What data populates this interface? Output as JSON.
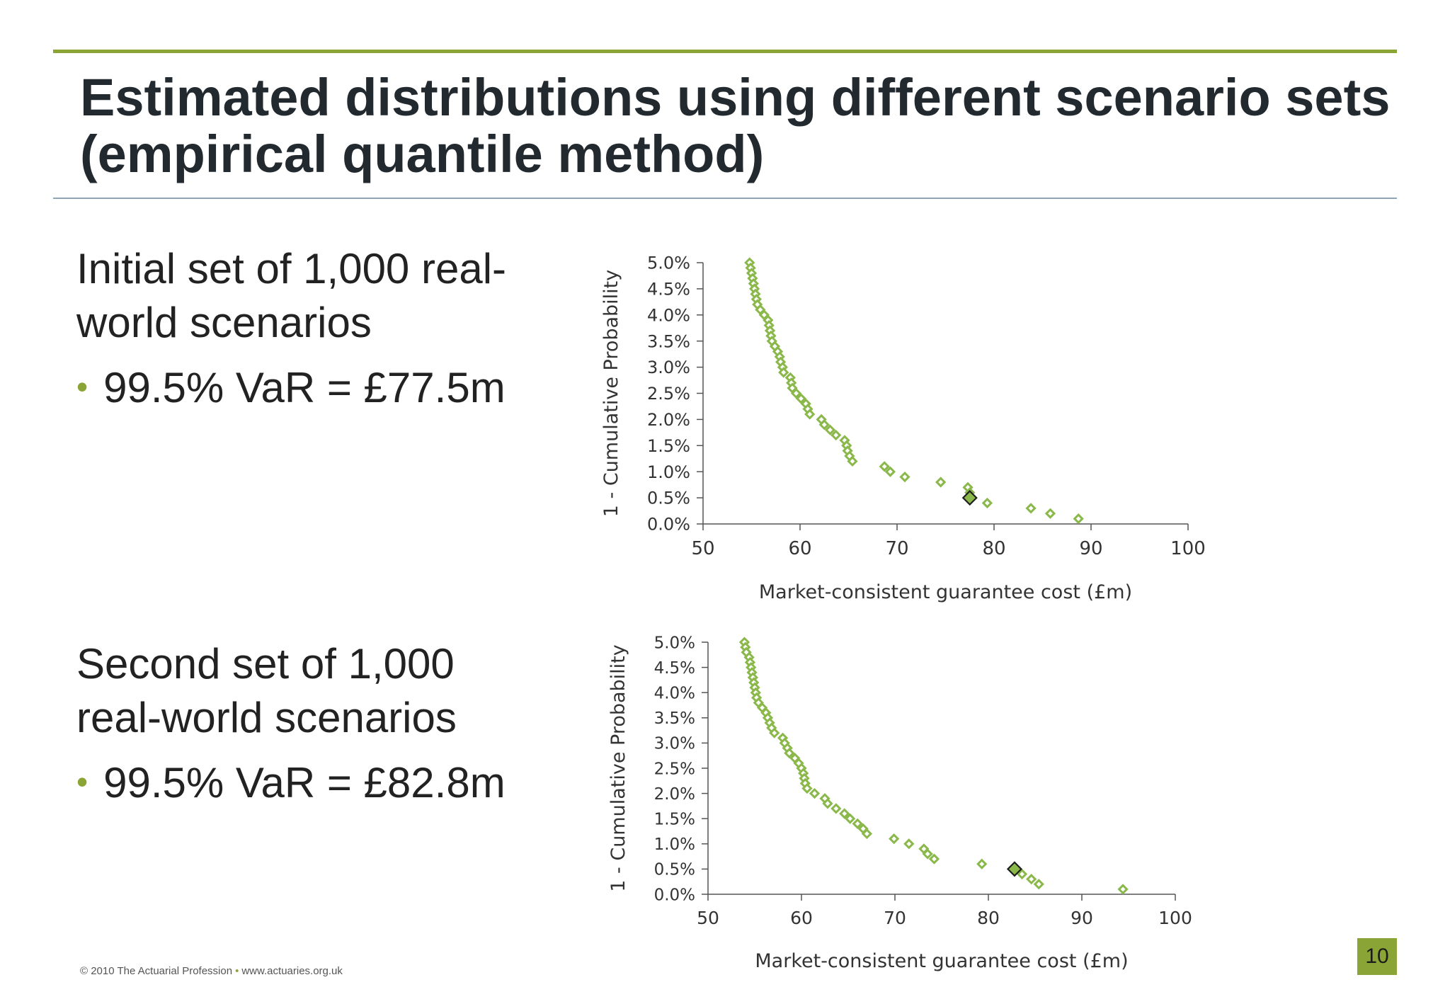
{
  "slide": {
    "title_lines": [
      "Estimated distributions using different scenario sets",
      "(empirical quantile method)"
    ],
    "blocks": [
      {
        "heading_lines": [
          "Initial set of 1,000 real-",
          "world scenarios"
        ],
        "bullet": "99.5% VaR = £77.5m"
      },
      {
        "heading_lines": [
          "Second set of 1,000",
          "real-world scenarios"
        ],
        "bullet": "99.5% VaR = £82.8m"
      }
    ],
    "footer": {
      "left": "© 2010 The Actuarial Profession",
      "separator": "•",
      "right": "www.actuaries.org.uk"
    },
    "page_number": "10"
  },
  "chart_data": [
    {
      "type": "scatter",
      "xlabel": "Market-consistent guarantee cost (£m)",
      "ylabel": "1 - Cumulative Probability",
      "xlim": [
        50,
        100
      ],
      "ylim": [
        0,
        5.0
      ],
      "x_ticks": [
        "50",
        "60",
        "70",
        "80",
        "90",
        "100"
      ],
      "y_ticks": [
        "0.0%",
        "0.5%",
        "1.0%",
        "1.5%",
        "2.0%",
        "2.5%",
        "3.0%",
        "3.5%",
        "4.0%",
        "4.5%",
        "5.0%"
      ],
      "grid": false,
      "marker_color": "#8ab84a",
      "highlight_color": "#8ab84a",
      "points": [
        [
          54.8,
          5.0
        ],
        [
          54.9,
          4.9
        ],
        [
          55.0,
          4.8
        ],
        [
          55.1,
          4.7
        ],
        [
          55.2,
          4.6
        ],
        [
          55.3,
          4.5
        ],
        [
          55.4,
          4.4
        ],
        [
          55.5,
          4.3
        ],
        [
          55.6,
          4.2
        ],
        [
          55.9,
          4.1
        ],
        [
          56.3,
          4.0
        ],
        [
          56.7,
          3.9
        ],
        [
          56.8,
          3.8
        ],
        [
          56.9,
          3.7
        ],
        [
          57.0,
          3.6
        ],
        [
          57.1,
          3.5
        ],
        [
          57.4,
          3.4
        ],
        [
          57.7,
          3.3
        ],
        [
          57.9,
          3.2
        ],
        [
          58.0,
          3.1
        ],
        [
          58.2,
          3.0
        ],
        [
          58.3,
          2.9
        ],
        [
          59.0,
          2.8
        ],
        [
          59.1,
          2.7
        ],
        [
          59.2,
          2.6
        ],
        [
          59.6,
          2.5
        ],
        [
          60.1,
          2.4
        ],
        [
          60.6,
          2.3
        ],
        [
          60.8,
          2.2
        ],
        [
          61.0,
          2.1
        ],
        [
          62.2,
          2.0
        ],
        [
          62.5,
          1.9
        ],
        [
          63.1,
          1.8
        ],
        [
          63.7,
          1.7
        ],
        [
          64.6,
          1.6
        ],
        [
          64.8,
          1.5
        ],
        [
          64.9,
          1.4
        ],
        [
          65.1,
          1.3
        ],
        [
          65.4,
          1.2
        ],
        [
          68.7,
          1.1
        ],
        [
          69.3,
          1.0
        ],
        [
          70.8,
          0.9
        ],
        [
          74.5,
          0.8
        ],
        [
          77.3,
          0.7
        ],
        [
          77.5,
          0.6
        ],
        [
          79.3,
          0.4
        ],
        [
          83.8,
          0.3
        ],
        [
          85.8,
          0.2
        ],
        [
          88.7,
          0.1
        ]
      ],
      "highlight_point": [
        77.5,
        0.5
      ]
    },
    {
      "type": "scatter",
      "xlabel": "Market-consistent guarantee cost (£m)",
      "ylabel": "1 - Cumulative Probability",
      "xlim": [
        50,
        100
      ],
      "ylim": [
        0,
        5.0
      ],
      "x_ticks": [
        "50",
        "60",
        "70",
        "80",
        "90",
        "100"
      ],
      "y_ticks": [
        "0.0%",
        "0.5%",
        "1.0%",
        "1.5%",
        "2.0%",
        "2.5%",
        "3.0%",
        "3.5%",
        "4.0%",
        "4.5%",
        "5.0%"
      ],
      "grid": false,
      "marker_color": "#8ab84a",
      "highlight_color": "#8ab84a",
      "points": [
        [
          53.9,
          5.0
        ],
        [
          54.0,
          4.9
        ],
        [
          54.1,
          4.8
        ],
        [
          54.4,
          4.7
        ],
        [
          54.5,
          4.6
        ],
        [
          54.6,
          4.5
        ],
        [
          54.7,
          4.4
        ],
        [
          54.8,
          4.3
        ],
        [
          54.9,
          4.2
        ],
        [
          55.0,
          4.1
        ],
        [
          55.1,
          4.0
        ],
        [
          55.2,
          3.9
        ],
        [
          55.4,
          3.8
        ],
        [
          55.8,
          3.7
        ],
        [
          56.2,
          3.6
        ],
        [
          56.4,
          3.5
        ],
        [
          56.6,
          3.4
        ],
        [
          56.8,
          3.3
        ],
        [
          57.1,
          3.2
        ],
        [
          58.0,
          3.1
        ],
        [
          58.2,
          3.0
        ],
        [
          58.5,
          2.9
        ],
        [
          58.7,
          2.8
        ],
        [
          59.3,
          2.7
        ],
        [
          59.7,
          2.6
        ],
        [
          60.0,
          2.5
        ],
        [
          60.2,
          2.4
        ],
        [
          60.3,
          2.3
        ],
        [
          60.4,
          2.2
        ],
        [
          60.6,
          2.1
        ],
        [
          61.4,
          2.0
        ],
        [
          62.5,
          1.9
        ],
        [
          62.8,
          1.8
        ],
        [
          63.7,
          1.7
        ],
        [
          64.6,
          1.6
        ],
        [
          65.2,
          1.5
        ],
        [
          66.0,
          1.4
        ],
        [
          66.6,
          1.3
        ],
        [
          67.0,
          1.2
        ],
        [
          69.9,
          1.1
        ],
        [
          71.5,
          1.0
        ],
        [
          73.1,
          0.9
        ],
        [
          73.5,
          0.8
        ],
        [
          74.2,
          0.7
        ],
        [
          79.3,
          0.6
        ],
        [
          83.6,
          0.4
        ],
        [
          84.6,
          0.3
        ],
        [
          85.4,
          0.2
        ],
        [
          94.4,
          0.1
        ]
      ],
      "highlight_point": [
        82.8,
        0.5
      ]
    }
  ]
}
